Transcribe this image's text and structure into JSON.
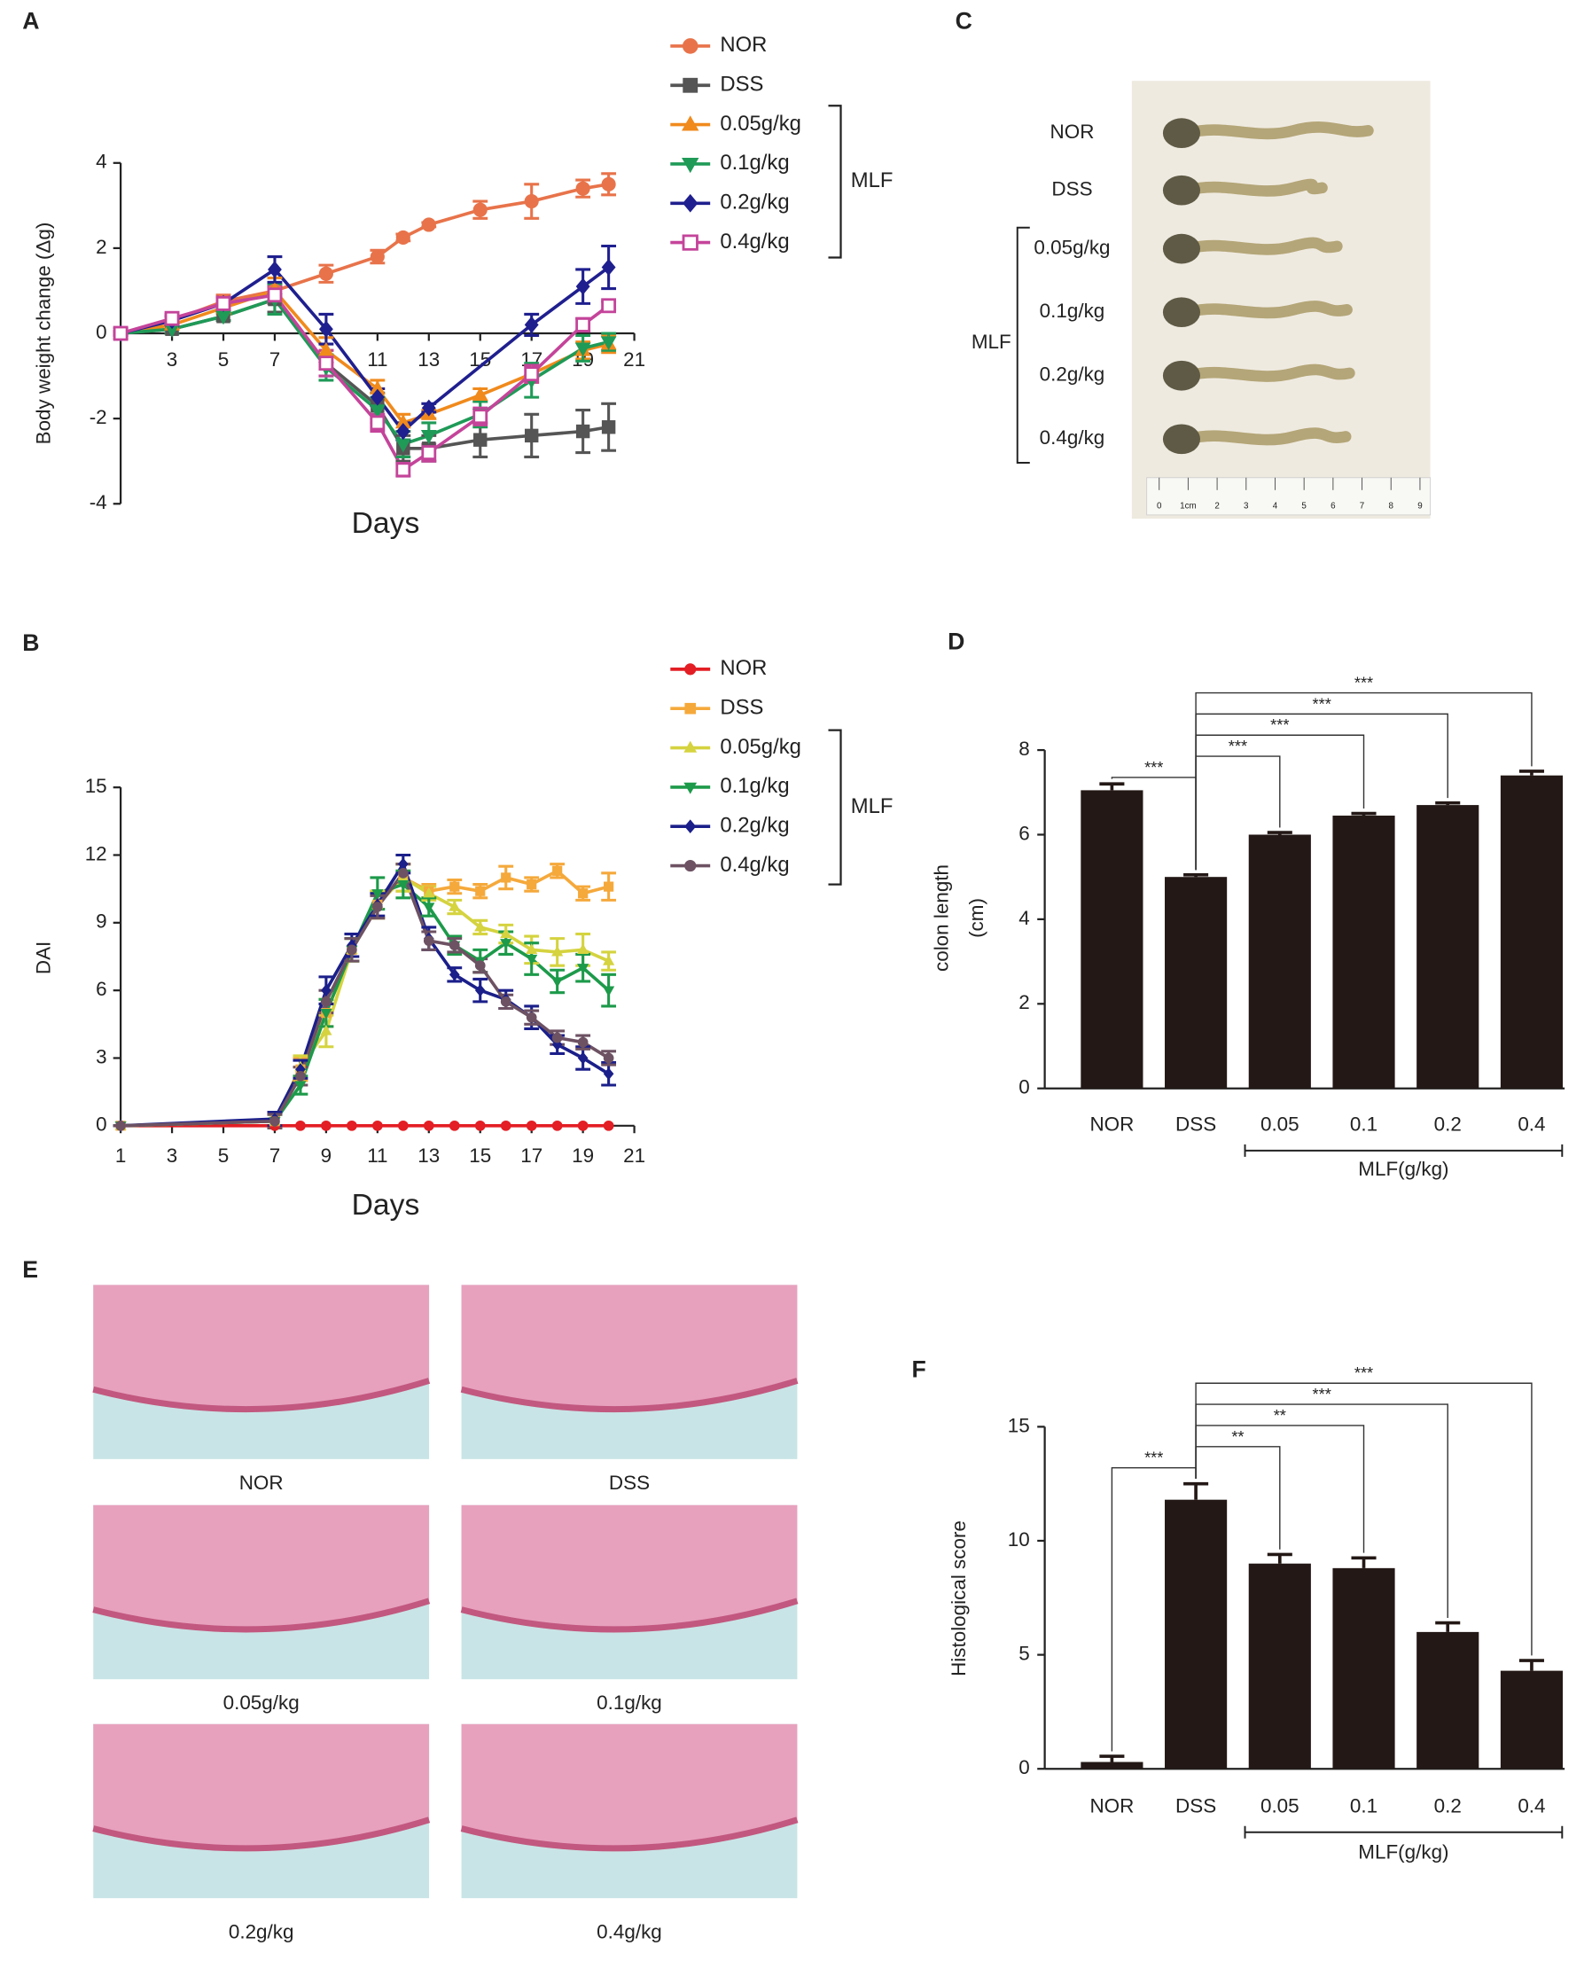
{
  "chart_data": [
    {
      "panel": "A",
      "type": "line",
      "y_label": "Body weight change (Δg)",
      "x_label": "Days",
      "xlim": [
        1,
        21
      ],
      "xticks": [
        3,
        5,
        7,
        11,
        13,
        15,
        17,
        19,
        21
      ],
      "ylim": [
        -4,
        4
      ],
      "yticks": [
        -4,
        -2,
        0,
        2,
        4
      ],
      "x": [
        1,
        3,
        5,
        7,
        9,
        11,
        12,
        13,
        15,
        17,
        19,
        20
      ],
      "legend_group_label": "MLF",
      "series": [
        {
          "name": "NOR",
          "color": "#e8734a",
          "marker": "circle",
          "values": [
            0,
            0.3,
            0.75,
            1.0,
            1.4,
            1.8,
            2.25,
            2.55,
            2.9,
            3.1,
            3.4,
            3.5
          ],
          "errors": [
            0.05,
            0.1,
            0.15,
            0.15,
            0.2,
            0.15,
            0.08,
            0.05,
            0.2,
            0.4,
            0.2,
            0.25
          ]
        },
        {
          "name": "DSS",
          "color": "#555555",
          "marker": "square",
          "values": [
            0,
            0.1,
            0.4,
            0.8,
            -0.7,
            -1.7,
            -2.7,
            -2.7,
            -2.5,
            -2.4,
            -2.3,
            -2.2
          ],
          "errors": [
            0.05,
            0.1,
            0.1,
            0.3,
            0.3,
            0.3,
            0.3,
            0.3,
            0.4,
            0.5,
            0.5,
            0.55
          ]
        },
        {
          "name": "0.05g/kg",
          "color": "#f08a1c",
          "marker": "triangle",
          "values": [
            0,
            0.2,
            0.6,
            1.0,
            -0.4,
            -1.3,
            -2.1,
            -1.9,
            -1.45,
            -0.95,
            -0.4,
            -0.25
          ],
          "errors": [
            0.05,
            0.1,
            0.15,
            0.3,
            0.3,
            0.2,
            0.2,
            0.1,
            0.15,
            0.2,
            0.2,
            0.2
          ]
        },
        {
          "name": "0.1g/kg",
          "color": "#1f9a57",
          "marker": "triangle-down",
          "values": [
            0,
            0.1,
            0.4,
            0.8,
            -0.8,
            -1.8,
            -2.6,
            -2.4,
            -1.9,
            -1.1,
            -0.35,
            -0.2
          ],
          "errors": [
            0.05,
            0.1,
            0.1,
            0.35,
            0.3,
            0.3,
            0.3,
            0.3,
            0.3,
            0.4,
            0.3,
            0.2
          ]
        },
        {
          "name": "0.2g/kg",
          "color": "#1f1f8f",
          "marker": "diamond",
          "x": [
            1,
            3,
            5,
            7,
            9,
            11,
            12,
            13,
            17,
            19,
            20
          ],
          "values": [
            0,
            0.3,
            0.7,
            1.5,
            0.1,
            -1.5,
            -2.3,
            -1.75,
            0.2,
            1.1,
            1.55
          ],
          "errors": [
            0.05,
            0.1,
            0.15,
            0.3,
            0.35,
            0.2,
            0.2,
            0.1,
            0.25,
            0.4,
            0.5
          ]
        },
        {
          "name": "0.4g/kg",
          "color": "#c4449a",
          "marker": "open-square",
          "values": [
            0,
            0.35,
            0.7,
            0.9,
            -0.7,
            -2.1,
            -3.2,
            -2.8,
            -1.95,
            -0.95,
            0.2,
            0.65
          ],
          "errors": [
            0.05,
            0.1,
            0.15,
            0.2,
            0.3,
            0.2,
            0.15,
            0.2,
            0.2,
            0.2,
            0.15,
            0.1
          ]
        }
      ]
    },
    {
      "panel": "B",
      "type": "line",
      "y_label": "DAI",
      "x_label": "Days",
      "xlim": [
        1,
        21
      ],
      "xticks": [
        1,
        3,
        5,
        7,
        9,
        11,
        13,
        15,
        17,
        19,
        21
      ],
      "ylim": [
        0,
        15
      ],
      "yticks": [
        0,
        3,
        6,
        9,
        12,
        15
      ],
      "x": [
        1,
        7,
        8,
        9,
        10,
        11,
        12,
        13,
        14,
        15,
        16,
        17,
        18,
        19,
        20
      ],
      "legend_group_label": "MLF",
      "series": [
        {
          "name": "NOR",
          "color": "#e31e24",
          "marker": "circle",
          "values": [
            0,
            0,
            0,
            0,
            0,
            0,
            0,
            0,
            0,
            0,
            0,
            0,
            0,
            0,
            0
          ]
        },
        {
          "name": "DSS",
          "color": "#f5a93b",
          "marker": "square",
          "values": [
            0,
            0.2,
            2.5,
            5,
            7.8,
            9.8,
            11,
            10.4,
            10.6,
            10.4,
            11,
            10.7,
            11.3,
            10.3,
            10.6
          ],
          "errors": [
            0,
            0.3,
            0.5,
            0.6,
            0.5,
            0.6,
            0.6,
            0.3,
            0.3,
            0.3,
            0.5,
            0.3,
            0.3,
            0.3,
            0.6
          ]
        },
        {
          "name": "0.05g/kg",
          "color": "#d5d33f",
          "marker": "triangle",
          "values": [
            0,
            0.2,
            2.6,
            4.2,
            7.8,
            9.8,
            11,
            10.3,
            9.7,
            8.8,
            8.5,
            7.8,
            7.7,
            7.8,
            7.3
          ],
          "errors": [
            0,
            0.3,
            0.5,
            0.7,
            0.5,
            0.6,
            0.6,
            0.3,
            0.3,
            0.3,
            0.4,
            0.6,
            0.6,
            0.7,
            0.4
          ]
        },
        {
          "name": "0.1g/kg",
          "color": "#1d9a4a",
          "marker": "triangle-down",
          "values": [
            0,
            0.2,
            1.8,
            5,
            7.8,
            10.3,
            10.7,
            9.7,
            8,
            7.3,
            8.1,
            7.4,
            6.4,
            7,
            6.0
          ],
          "errors": [
            0,
            0.3,
            0.4,
            0.6,
            0.5,
            0.7,
            0.6,
            0.4,
            0.4,
            0.5,
            0.5,
            0.7,
            0.5,
            0.6,
            0.7
          ]
        },
        {
          "name": "0.2g/kg",
          "color": "#1b1f8a",
          "marker": "diamond",
          "values": [
            0,
            0.3,
            2.5,
            6,
            8,
            9.8,
            11.6,
            8.3,
            6.7,
            6.0,
            5.6,
            4.8,
            3.6,
            3.0,
            2.3
          ],
          "errors": [
            0,
            0.3,
            0.4,
            0.6,
            0.5,
            0.5,
            0.4,
            0.5,
            0.3,
            0.5,
            0.4,
            0.5,
            0.4,
            0.5,
            0.5
          ]
        },
        {
          "name": "0.4g/kg",
          "color": "#6d5263",
          "marker": "circle",
          "values": [
            0,
            0.2,
            2.2,
            5.5,
            7.8,
            9.7,
            11.2,
            8.2,
            8,
            7.1,
            5.5,
            4.8,
            3.9,
            3.7,
            3.0
          ],
          "errors": [
            0,
            0.3,
            0.4,
            0.5,
            0.5,
            0.5,
            0.4,
            0.4,
            0.3,
            0.3,
            0.3,
            0.3,
            0.3,
            0.3,
            0.3
          ]
        }
      ]
    },
    {
      "panel": "D",
      "type": "bar",
      "y_label": [
        "colon length",
        "(cm)"
      ],
      "color": "#231815",
      "categories": [
        "NOR",
        "DSS",
        "0.05",
        "0.1",
        "0.2",
        "0.4"
      ],
      "values": [
        7.05,
        5.0,
        6.0,
        6.45,
        6.7,
        7.4
      ],
      "errors": [
        0.15,
        0.05,
        0.05,
        0.05,
        0.05,
        0.1
      ],
      "ylim": [
        0,
        8
      ],
      "yticks": [
        0,
        2,
        4,
        6,
        8
      ],
      "category_group_label": "MLF(g/kg)",
      "significance": [
        {
          "from": "NOR",
          "to": "DSS",
          "label": "***"
        },
        {
          "from": "DSS",
          "to": "0.05",
          "label": "***"
        },
        {
          "from": "DSS",
          "to": "0.1",
          "label": "***"
        },
        {
          "from": "DSS",
          "to": "0.2",
          "label": "***"
        },
        {
          "from": "DSS",
          "to": "0.4",
          "label": "***"
        }
      ]
    },
    {
      "panel": "F",
      "type": "bar",
      "y_label": "Histological score",
      "color": "#231815",
      "categories": [
        "NOR",
        "DSS",
        "0.05",
        "0.1",
        "0.2",
        "0.4"
      ],
      "values": [
        0.3,
        11.8,
        9.0,
        8.8,
        6.0,
        4.3
      ],
      "errors": [
        0.25,
        0.7,
        0.4,
        0.45,
        0.4,
        0.45
      ],
      "ylim": [
        0,
        15
      ],
      "yticks": [
        0,
        5,
        10,
        15
      ],
      "category_group_label": "MLF(g/kg)",
      "significance": [
        {
          "from": "NOR",
          "to": "DSS",
          "label": "***"
        },
        {
          "from": "DSS",
          "to": "0.05",
          "label": "**"
        },
        {
          "from": "DSS",
          "to": "0.1",
          "label": "**"
        },
        {
          "from": "DSS",
          "to": "0.2",
          "label": "***"
        },
        {
          "from": "DSS",
          "to": "0.4",
          "label": "***"
        }
      ]
    }
  ],
  "photo_panels": [
    {
      "panel": "C",
      "labels": [
        "NOR",
        "DSS",
        "0.05g/kg",
        "0.1g/kg",
        "0.2g/kg",
        "0.4g/kg"
      ],
      "group_label": "MLF",
      "ruler_labels": [
        "0",
        "1cm",
        "2",
        "3",
        "4",
        "5",
        "6",
        "7",
        "8",
        "9"
      ]
    },
    {
      "panel": "E",
      "captions": [
        "NOR",
        "DSS",
        "0.05g/kg",
        "0.1g/kg",
        "0.2g/kg",
        "0.4g/kg"
      ]
    }
  ]
}
